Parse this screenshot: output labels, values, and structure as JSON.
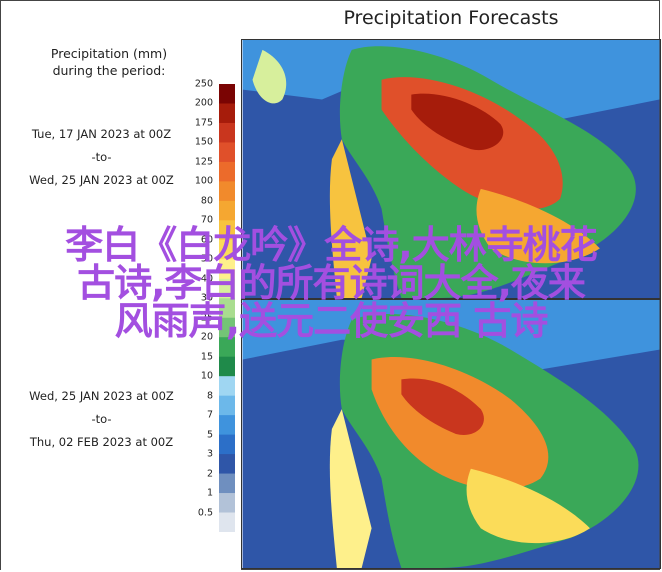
{
  "title": "Precipitation Forecasts",
  "legend": {
    "heading_line1": "Precipitation (mm)",
    "heading_line2": "during the period:",
    "ticks": [
      "250",
      "200",
      "175",
      "150",
      "125",
      "100",
      "80",
      "70",
      "60",
      "50",
      "40",
      "30",
      "25",
      "20",
      "15",
      "10",
      "8",
      "7",
      "5",
      "3",
      "2",
      "1",
      "0.5"
    ],
    "colors": [
      "#7a0403",
      "#a61c0b",
      "#c9361e",
      "#e0502a",
      "#ec6b2b",
      "#f18a2c",
      "#f5a731",
      "#f7c33f",
      "#fbdc59",
      "#fef08b",
      "#d7ef9c",
      "#a9dd8f",
      "#74c476",
      "#3aa858",
      "#1f8a4a",
      "#9fd6f2",
      "#6cb8ea",
      "#3f93dd",
      "#2c6fc8",
      "#2f56a8",
      "#6f8fbf",
      "#b2c2d8",
      "#dfe5ee"
    ]
  },
  "period_top": {
    "start": "Tue, 17 JAN 2023 at 00Z",
    "sep": "-to-",
    "end": "Wed, 25 JAN 2023 at 00Z"
  },
  "period_bottom": {
    "start": "Wed, 25 JAN 2023 at 00Z",
    "sep": "-to-",
    "end": "Thu, 02 FEB 2023 at 00Z"
  },
  "overlay_text": {
    "line1": "李白《白龙吟》全诗,大林寺桃花",
    "line2": "古诗,李白的所有诗词大全,夜来",
    "line3": "风雨声,送元二使安西 古诗"
  }
}
